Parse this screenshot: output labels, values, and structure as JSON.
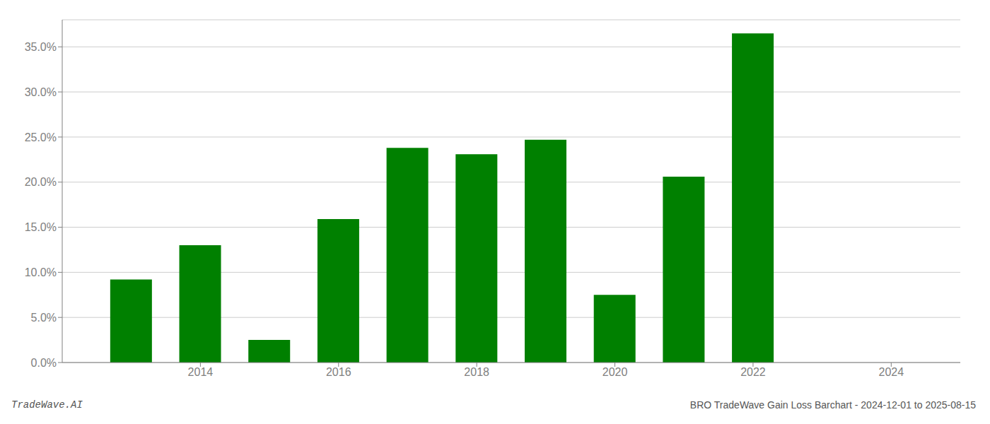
{
  "chart_data": {
    "type": "bar",
    "title": "BRO TradeWave Gain Loss Barchart - 2024-12-01 to 2025-08-15",
    "annotations": [
      "TradeWave.AI"
    ],
    "x": [
      2013,
      2014,
      2015,
      2016,
      2017,
      2018,
      2019,
      2020,
      2021,
      2022,
      2023
    ],
    "values": [
      0.092,
      0.13,
      0.025,
      0.159,
      0.238,
      0.231,
      0.247,
      0.075,
      0.206,
      0.365,
      0.0
    ],
    "color": "#008000",
    "xlim": [
      2012.0,
      2025.0
    ],
    "xticks": [
      2014,
      2016,
      2018,
      2020,
      2022,
      2024
    ],
    "ylim": [
      0.0,
      0.38
    ],
    "yticks": [
      {
        "value": 0.0,
        "label": "0.0%"
      },
      {
        "value": 0.05,
        "label": "5.0%"
      },
      {
        "value": 0.1,
        "label": "10.0%"
      },
      {
        "value": 0.15,
        "label": "15.0%"
      },
      {
        "value": 0.2,
        "label": "20.0%"
      },
      {
        "value": 0.25,
        "label": "25.0%"
      },
      {
        "value": 0.3,
        "label": "30.0%"
      },
      {
        "value": 0.35,
        "label": "35.0%"
      }
    ],
    "grid": true
  }
}
